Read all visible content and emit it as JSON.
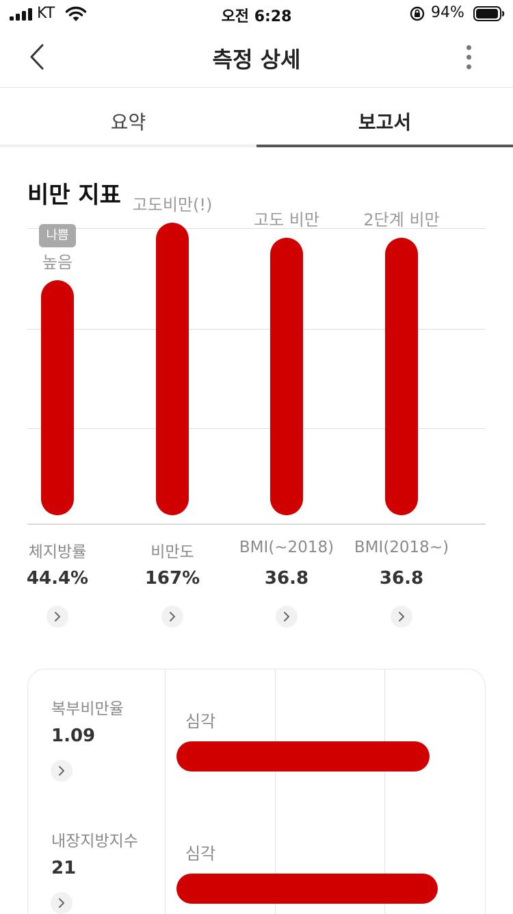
{
  "status_bar": {
    "carrier": "KT",
    "time": "오전 6:28",
    "battery": "94%"
  },
  "header": {
    "title": "측정 상세"
  },
  "tabs": [
    {
      "label": "요약",
      "active": false
    },
    {
      "label": "보고서",
      "active": true
    }
  ],
  "section": {
    "title": "비만 지표"
  },
  "colors": {
    "accent": "#d10000",
    "badge": "#a9a9a9"
  },
  "chart_data": {
    "type": "bar",
    "categories": [
      "체지방률",
      "비만도",
      "BMI(~2018)",
      "BMI(2018~)"
    ],
    "values_text": [
      "44.4%",
      "167%",
      "36.8",
      "36.8"
    ],
    "levels": [
      0.78,
      0.97,
      0.92,
      0.92
    ],
    "bar_labels": [
      "높음",
      "고도비만(!)",
      "고도 비만",
      "2단계 비만"
    ],
    "badge": {
      "index": 0,
      "text": "나쁨"
    },
    "grid": true
  },
  "card": {
    "rows": [
      {
        "name": "복부비만율",
        "value": "1.09",
        "status": "심각",
        "level": 0.88
      },
      {
        "name": "내장지방지수",
        "value": "21",
        "status": "심각",
        "level": 0.91
      }
    ]
  }
}
